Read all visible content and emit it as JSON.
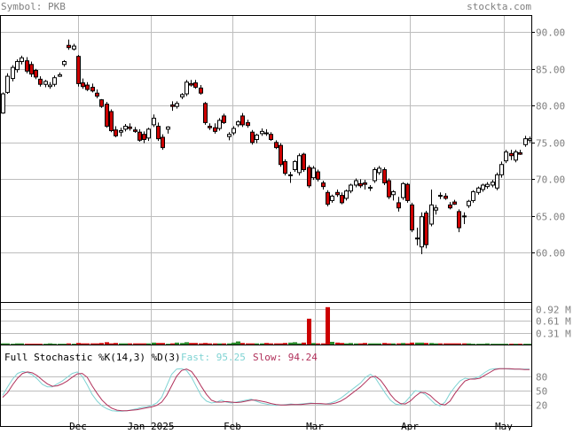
{
  "header": {
    "symbol_text": "Symbol: PKB",
    "site_text": "stockta.com"
  },
  "colors": {
    "header_text": "#7f7f7f",
    "grid": "#bdbdbd",
    "frame": "#000000",
    "up_candle_fill": "#ffffff",
    "down_candle_fill": "#cc0000",
    "volume_up": "#2a8a2a",
    "volume_down": "#cc0000",
    "fast_line": "#7fd3d3",
    "slow_line": "#b0305a"
  },
  "chart_data": [
    {
      "type": "candlestick",
      "title": "",
      "xlabel": "",
      "ylabel": "",
      "x_tick_labels": [
        "Dec",
        "Jan 2025",
        "Feb",
        "Mar",
        "Apr",
        "May"
      ],
      "y_tick_labels": [
        "90.00",
        "85.00",
        "80.00",
        "75.00",
        "70.00",
        "65.00",
        "60.00"
      ],
      "y_ticks": [
        90,
        85,
        80,
        75,
        70,
        65,
        60
      ],
      "ylim": [
        53.3,
        92.2
      ],
      "grid": true,
      "candles": [
        [
          79.0,
          81.8,
          78.9,
          81.6
        ],
        [
          81.8,
          84.4,
          81.6,
          84.0
        ],
        [
          83.7,
          85.5,
          83.3,
          85.2
        ],
        [
          84.9,
          86.3,
          84.5,
          86.0
        ],
        [
          86.0,
          86.8,
          85.6,
          86.5
        ],
        [
          86.1,
          86.6,
          84.4,
          84.7
        ],
        [
          85.6,
          86.0,
          83.9,
          84.3
        ],
        [
          84.8,
          85.0,
          83.6,
          83.9
        ],
        [
          83.6,
          84.0,
          82.6,
          82.9
        ],
        [
          82.9,
          83.5,
          82.5,
          83.3
        ],
        [
          82.6,
          83.2,
          82.3,
          82.8
        ],
        [
          82.9,
          84.1,
          82.6,
          83.8
        ],
        [
          84.0,
          84.5,
          83.9,
          84.2
        ],
        [
          85.6,
          86.2,
          85.3,
          86.0
        ],
        [
          88.2,
          89.0,
          87.6,
          87.9
        ],
        [
          87.7,
          88.4,
          87.5,
          88.1
        ],
        [
          86.7,
          86.9,
          82.6,
          83.0
        ],
        [
          83.1,
          83.7,
          82.3,
          82.6
        ],
        [
          82.8,
          83.2,
          82.0,
          82.2
        ],
        [
          82.5,
          83.0,
          81.8,
          82.0
        ],
        [
          81.7,
          82.2,
          81.0,
          81.3
        ],
        [
          80.8,
          80.9,
          79.7,
          79.9
        ],
        [
          80.2,
          80.5,
          77.0,
          77.2
        ],
        [
          79.2,
          79.5,
          76.4,
          76.6
        ],
        [
          76.7,
          77.2,
          75.7,
          75.9
        ],
        [
          76.4,
          77.0,
          75.8,
          76.6
        ],
        [
          76.8,
          77.5,
          76.5,
          77.2
        ],
        [
          77.1,
          77.6,
          76.6,
          76.9
        ],
        [
          76.7,
          77.1,
          76.3,
          76.5
        ],
        [
          76.4,
          76.8,
          75.1,
          75.3
        ],
        [
          76.1,
          76.5,
          74.9,
          75.4
        ],
        [
          75.6,
          77.0,
          75.2,
          76.8
        ],
        [
          77.4,
          78.8,
          77.1,
          78.3
        ],
        [
          77.2,
          77.7,
          75.2,
          75.5
        ],
        [
          75.7,
          76.1,
          74.0,
          74.3
        ],
        [
          76.8,
          77.2,
          76.2,
          77.1
        ],
        [
          80.1,
          80.6,
          79.3,
          79.9
        ],
        [
          79.9,
          80.6,
          79.6,
          80.3
        ],
        [
          81.2,
          81.7,
          80.9,
          81.5
        ],
        [
          81.6,
          83.5,
          81.3,
          83.2
        ],
        [
          83.0,
          83.5,
          82.6,
          82.8
        ],
        [
          83.1,
          83.5,
          82.3,
          82.5
        ],
        [
          82.4,
          82.8,
          81.5,
          81.7
        ],
        [
          80.3,
          80.5,
          77.4,
          77.7
        ],
        [
          77.2,
          77.6,
          76.7,
          77.0
        ],
        [
          77.0,
          77.6,
          76.2,
          76.5
        ],
        [
          76.9,
          78.3,
          76.6,
          78.0
        ],
        [
          78.6,
          78.9,
          77.5,
          77.7
        ],
        [
          75.8,
          76.4,
          75.3,
          76.1
        ],
        [
          76.3,
          77.2,
          76.0,
          76.9
        ],
        [
          77.4,
          78.0,
          77.1,
          77.8
        ],
        [
          78.6,
          79.0,
          77.1,
          77.4
        ],
        [
          77.7,
          78.1,
          77.0,
          77.3
        ],
        [
          76.4,
          76.7,
          74.7,
          75.0
        ],
        [
          75.4,
          76.2,
          74.9,
          76.0
        ],
        [
          76.2,
          76.9,
          75.9,
          76.5
        ],
        [
          76.3,
          76.8,
          75.9,
          76.2
        ],
        [
          76.1,
          76.4,
          75.2,
          75.4
        ],
        [
          75.0,
          75.3,
          74.1,
          74.3
        ],
        [
          74.6,
          74.9,
          71.7,
          72.0
        ],
        [
          72.4,
          72.7,
          70.5,
          70.8
        ],
        [
          70.5,
          71.0,
          69.5,
          70.6
        ],
        [
          71.3,
          72.6,
          71.0,
          72.4
        ],
        [
          70.9,
          73.5,
          70.5,
          73.2
        ],
        [
          73.4,
          73.6,
          71.0,
          71.3
        ],
        [
          71.6,
          71.9,
          68.8,
          69.1
        ],
        [
          70.2,
          71.8,
          69.9,
          71.5
        ],
        [
          71.0,
          71.3,
          69.7,
          70.0
        ],
        [
          69.5,
          69.8,
          68.6,
          69.0
        ],
        [
          68.2,
          68.5,
          66.3,
          66.6
        ],
        [
          67.1,
          67.9,
          66.8,
          67.7
        ],
        [
          68.2,
          68.6,
          67.6,
          67.9
        ],
        [
          67.8,
          68.2,
          66.6,
          66.8
        ],
        [
          67.4,
          68.6,
          67.1,
          68.4
        ],
        [
          68.4,
          69.4,
          68.1,
          69.2
        ],
        [
          69.2,
          70.1,
          68.9,
          69.8
        ],
        [
          69.4,
          70.0,
          68.8,
          69.1
        ],
        [
          69.5,
          69.9,
          68.6,
          69.3
        ],
        [
          68.9,
          69.2,
          68.4,
          68.9
        ],
        [
          69.8,
          71.6,
          69.5,
          71.3
        ],
        [
          70.9,
          71.8,
          70.6,
          71.5
        ],
        [
          71.3,
          71.6,
          69.2,
          69.5
        ],
        [
          69.8,
          70.1,
          67.3,
          67.6
        ],
        [
          67.9,
          68.5,
          67.1,
          68.3
        ],
        [
          66.8,
          67.6,
          65.6,
          66.1
        ],
        [
          67.5,
          69.6,
          67.2,
          69.4
        ],
        [
          69.3,
          69.5,
          66.8,
          67.1
        ],
        [
          66.5,
          66.8,
          62.8,
          63.1
        ],
        [
          61.9,
          63.4,
          61.0,
          62.0
        ],
        [
          60.8,
          65.5,
          59.8,
          64.9
        ],
        [
          65.4,
          65.7,
          60.6,
          61.1
        ],
        [
          63.9,
          68.6,
          63.6,
          66.5
        ],
        [
          65.8,
          66.5,
          65.2,
          66.1
        ],
        [
          67.8,
          68.2,
          67.3,
          67.7
        ],
        [
          67.7,
          68.1,
          67.2,
          67.4
        ],
        [
          66.5,
          66.9,
          65.9,
          66.1
        ],
        [
          66.9,
          67.2,
          66.5,
          66.6
        ],
        [
          65.6,
          65.9,
          62.8,
          63.4
        ],
        [
          65.0,
          65.5,
          63.9,
          64.9
        ],
        [
          66.4,
          67.2,
          66.1,
          67.0
        ],
        [
          67.1,
          68.5,
          66.8,
          68.3
        ],
        [
          68.2,
          69.0,
          67.9,
          68.8
        ],
        [
          68.6,
          69.4,
          68.3,
          69.2
        ],
        [
          69.0,
          69.6,
          68.7,
          69.3
        ],
        [
          69.2,
          69.9,
          68.9,
          69.6
        ],
        [
          68.8,
          70.9,
          68.5,
          70.6
        ],
        [
          70.6,
          72.4,
          70.2,
          72.0
        ],
        [
          72.5,
          74.0,
          72.2,
          73.7
        ],
        [
          73.5,
          74.0,
          72.6,
          73.2
        ],
        [
          72.6,
          74.0,
          72.3,
          73.7
        ],
        [
          73.6,
          74.0,
          73.3,
          73.4
        ],
        [
          74.7,
          75.9,
          74.4,
          75.5
        ],
        [
          75.3,
          75.8,
          75.0,
          75.5
        ]
      ]
    },
    {
      "type": "bar",
      "title": "",
      "xlabel": "",
      "ylabel": "",
      "y_tick_labels": [
        "0.92 M",
        "0.61 M",
        "0.31 M"
      ],
      "y_ticks": [
        0.92,
        0.61,
        0.31
      ],
      "ylim": [
        0,
        1.08
      ],
      "grid": true,
      "values": [
        0.03,
        0.03,
        0.02,
        0.03,
        0.03,
        0.02,
        0.02,
        0.02,
        0.02,
        0.02,
        0.03,
        0.02,
        0.02,
        0.02,
        0.03,
        0.02,
        0.04,
        0.03,
        0.03,
        0.03,
        0.03,
        0.04,
        0.06,
        0.03,
        0.04,
        0.03,
        0.03,
        0.03,
        0.03,
        0.03,
        0.03,
        0.03,
        0.05,
        0.04,
        0.04,
        0.02,
        0.03,
        0.05,
        0.04,
        0.06,
        0.04,
        0.04,
        0.03,
        0.04,
        0.03,
        0.03,
        0.03,
        0.03,
        0.03,
        0.05,
        0.08,
        0.04,
        0.03,
        0.03,
        0.03,
        0.03,
        0.04,
        0.03,
        0.03,
        0.03,
        0.04,
        0.05,
        0.06,
        0.03,
        0.05,
        0.67,
        0.04,
        0.03,
        0.03,
        0.97,
        0.07,
        0.05,
        0.04,
        0.03,
        0.04,
        0.03,
        0.03,
        0.04,
        0.03,
        0.03,
        0.03,
        0.04,
        0.03,
        0.03,
        0.03,
        0.04,
        0.03,
        0.05,
        0.05,
        0.05,
        0.04,
        0.04,
        0.03,
        0.03,
        0.03,
        0.03,
        0.03,
        0.03,
        0.03,
        0.03,
        0.02,
        0.02,
        0.02,
        0.03,
        0.02,
        0.02,
        0.02,
        0.02,
        0.02,
        0.02,
        0.02,
        0.02,
        0.02
      ]
    },
    {
      "type": "line",
      "title": "Full Stochastic %K(14,3) %D(3)",
      "xlabel": "",
      "ylabel": "",
      "y_tick_labels": [
        "80",
        "50",
        "20"
      ],
      "y_ticks": [
        80,
        50,
        20
      ],
      "ylim": [
        0,
        100
      ],
      "grid": true,
      "legend_labels": [
        "Fast: 95.25",
        "Slow: 94.24"
      ],
      "series": [
        {
          "name": "Fast: 95.25",
          "values": [
            40,
            58,
            74,
            86,
            90,
            88,
            83,
            74,
            63,
            58,
            58,
            64,
            70,
            78,
            86,
            89,
            80,
            62,
            42,
            28,
            18,
            12,
            8,
            7,
            7,
            8,
            10,
            12,
            15,
            16,
            19,
            24,
            36,
            60,
            84,
            95,
            96,
            92,
            78,
            58,
            38,
            28,
            24,
            26,
            30,
            26,
            24,
            26,
            28,
            30,
            32,
            28,
            24,
            22,
            20,
            19,
            20,
            21,
            22,
            21,
            22,
            23,
            24,
            23,
            22,
            22,
            24,
            28,
            34,
            42,
            50,
            58,
            66,
            78,
            84,
            76,
            60,
            44,
            30,
            22,
            20,
            26,
            38,
            50,
            48,
            42,
            32,
            22,
            18,
            26,
            44,
            58,
            70,
            76,
            74,
            76,
            80,
            88,
            94,
            96,
            96,
            96,
            95,
            95,
            95,
            95,
            95
          ]
        },
        {
          "name": "Slow: 94.24",
          "values": [
            36,
            46,
            62,
            76,
            86,
            89,
            87,
            81,
            72,
            64,
            59,
            60,
            64,
            70,
            78,
            85,
            86,
            78,
            60,
            44,
            30,
            20,
            13,
            9,
            8,
            8,
            9,
            10,
            12,
            14,
            16,
            19,
            26,
            40,
            60,
            80,
            92,
            95,
            90,
            76,
            58,
            42,
            30,
            26,
            26,
            27,
            26,
            25,
            26,
            28,
            30,
            30,
            28,
            26,
            23,
            21,
            20,
            20,
            21,
            21,
            21,
            22,
            23,
            23,
            23,
            22,
            22,
            24,
            28,
            34,
            42,
            50,
            58,
            68,
            78,
            80,
            72,
            58,
            42,
            30,
            23,
            22,
            28,
            38,
            46,
            46,
            40,
            30,
            22,
            20,
            28,
            44,
            58,
            70,
            74,
            74,
            76,
            82,
            88,
            94,
            96,
            96,
            96,
            95,
            95,
            94,
            94
          ]
        }
      ]
    }
  ]
}
